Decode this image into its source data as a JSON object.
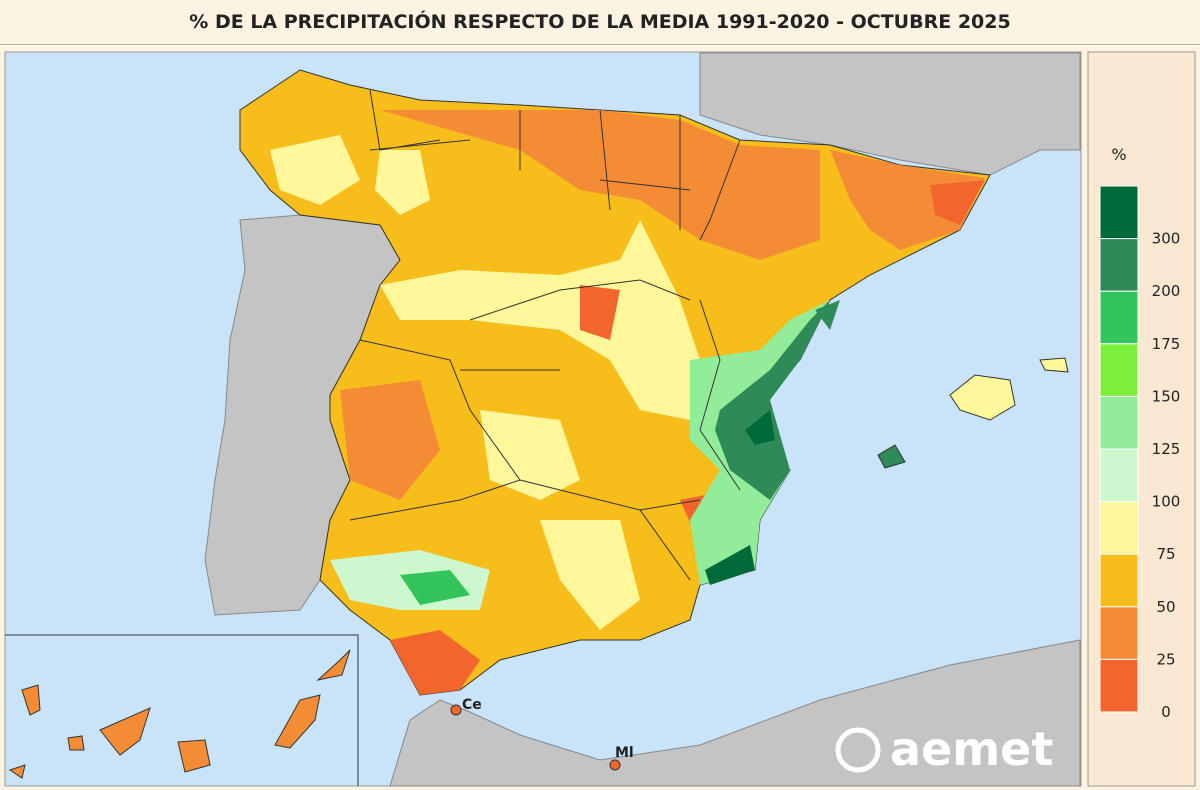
{
  "header": {
    "title": "% DE LA PRECIPITACIÓN RESPECTO DE LA MEDIA 1991-2020 - OCTUBRE 2025"
  },
  "legend": {
    "unit": "%",
    "ticks": [
      300,
      200,
      175,
      150,
      125,
      100,
      75,
      50,
      25,
      0
    ],
    "colors": [
      "#006a3a",
      "#2e8b57",
      "#34c45c",
      "#7cf03a",
      "#93ec9a",
      "#ccf7cf",
      "#fff79a",
      "#f7bd1a",
      "#f48c36",
      "#f2662e"
    ]
  },
  "map": {
    "labels": [
      "Ce",
      "Ml"
    ],
    "logo": "aemet"
  }
}
